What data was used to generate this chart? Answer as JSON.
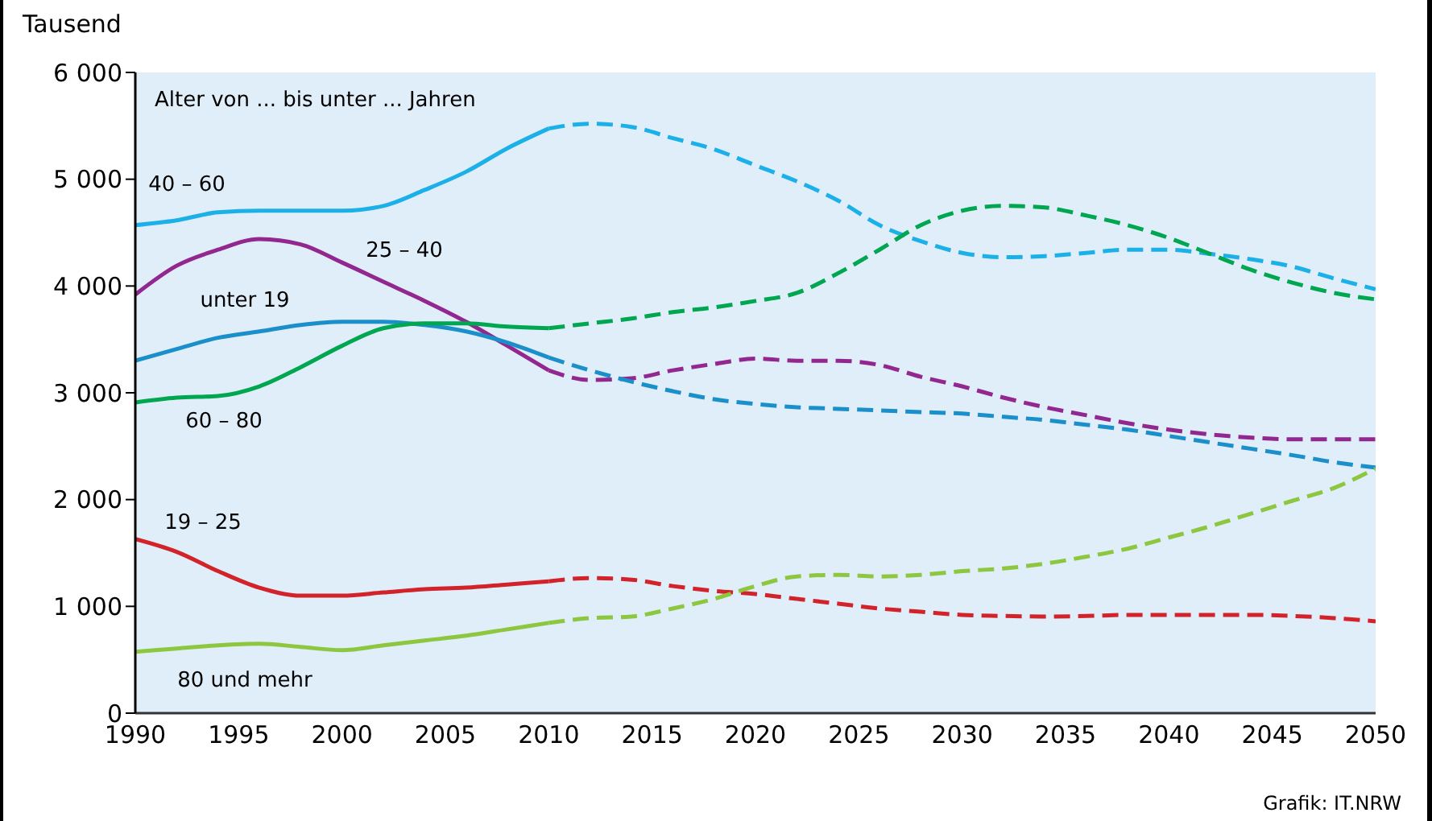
{
  "chart_data": {
    "type": "line",
    "ylabel": "Tausend",
    "x": [
      1990,
      1992,
      1994,
      1996,
      1998,
      2000,
      2002,
      2004,
      2006,
      2008,
      2010,
      2012,
      2014,
      2016,
      2018,
      2020,
      2022,
      2024,
      2026,
      2028,
      2030,
      2032,
      2034,
      2036,
      2038,
      2040,
      2042,
      2044,
      2046,
      2048,
      2050
    ],
    "series": [
      {
        "name": "40 – 60",
        "color": "#1cb0e8",
        "line_style": "solid",
        "values": [
          4570,
          4615,
          4690,
          4705,
          4705,
          4705,
          4750,
          4900,
          5070,
          5290,
          5475,
          null,
          null,
          null,
          null,
          null,
          null,
          null,
          null,
          null,
          null,
          null,
          null,
          null,
          null,
          null,
          null,
          null,
          null,
          null,
          null
        ]
      },
      {
        "color": "#1cb0e8",
        "line_style": "dashed",
        "values": [
          null,
          null,
          null,
          null,
          null,
          null,
          null,
          null,
          null,
          null,
          5475,
          5520,
          5490,
          5385,
          5280,
          5130,
          4980,
          4800,
          4570,
          4420,
          4310,
          4270,
          4280,
          4310,
          4340,
          4340,
          4300,
          4250,
          4180,
          4070,
          3970
        ]
      },
      {
        "name": "25 – 40",
        "color": "#92278f",
        "line_style": "solid",
        "values": [
          3920,
          4190,
          4340,
          4440,
          4390,
          4220,
          4040,
          3860,
          3665,
          3440,
          3210,
          null,
          null,
          null,
          null,
          null,
          null,
          null,
          null,
          null,
          null,
          null,
          null,
          null,
          null,
          null,
          null,
          null,
          null,
          null,
          null
        ]
      },
      {
        "color": "#92278f",
        "line_style": "dashed",
        "values": [
          null,
          null,
          null,
          null,
          null,
          null,
          null,
          null,
          null,
          null,
          3210,
          3120,
          3135,
          3210,
          3270,
          3320,
          3300,
          3300,
          3260,
          3150,
          3060,
          2955,
          2865,
          2790,
          2715,
          2655,
          2610,
          2580,
          2565,
          2565,
          2565
        ]
      },
      {
        "name": "unter 19",
        "color": "#1a8fc9",
        "line_style": "solid",
        "values": [
          3300,
          3410,
          3515,
          3575,
          3635,
          3665,
          3665,
          3635,
          3575,
          3470,
          3330,
          null,
          null,
          null,
          null,
          null,
          null,
          null,
          null,
          null,
          null,
          null,
          null,
          null,
          null,
          null,
          null,
          null,
          null,
          null,
          null
        ]
      },
      {
        "color": "#1a8fc9",
        "line_style": "dashed",
        "values": [
          null,
          null,
          null,
          null,
          null,
          null,
          null,
          null,
          null,
          null,
          3330,
          3210,
          3105,
          3015,
          2940,
          2895,
          2865,
          2850,
          2835,
          2820,
          2805,
          2775,
          2745,
          2700,
          2655,
          2595,
          2535,
          2475,
          2415,
          2350,
          2300
        ]
      },
      {
        "name": "60 – 80",
        "color": "#00a650",
        "line_style": "solid",
        "values": [
          2910,
          2955,
          2970,
          3060,
          3240,
          3440,
          3605,
          3650,
          3650,
          3620,
          3605,
          null,
          null,
          null,
          null,
          null,
          null,
          null,
          null,
          null,
          null,
          null,
          null,
          null,
          null,
          null,
          null,
          null,
          null,
          null,
          null
        ]
      },
      {
        "color": "#00a650",
        "line_style": "dashed",
        "values": [
          null,
          null,
          null,
          null,
          null,
          null,
          null,
          null,
          null,
          null,
          3605,
          3650,
          3695,
          3755,
          3800,
          3860,
          3935,
          4120,
          4340,
          4570,
          4705,
          4750,
          4735,
          4660,
          4570,
          4450,
          4300,
          4150,
          4030,
          3935,
          3875
        ]
      },
      {
        "name": "19 – 25",
        "color": "#d2232a",
        "line_style": "solid",
        "values": [
          1630,
          1510,
          1330,
          1175,
          1100,
          1100,
          1130,
          1160,
          1175,
          1205,
          1235,
          null,
          null,
          null,
          null,
          null,
          null,
          null,
          null,
          null,
          null,
          null,
          null,
          null,
          null,
          null,
          null,
          null,
          null,
          null,
          null
        ]
      },
      {
        "color": "#d2232a",
        "line_style": "dashed",
        "values": [
          null,
          null,
          null,
          null,
          null,
          null,
          null,
          null,
          null,
          null,
          1235,
          1265,
          1250,
          1190,
          1145,
          1115,
          1070,
          1025,
          980,
          950,
          920,
          910,
          905,
          910,
          920,
          920,
          920,
          920,
          910,
          890,
          860
        ]
      },
      {
        "name": "80 und mehr",
        "color": "#8dc63f",
        "line_style": "solid",
        "values": [
          575,
          605,
          635,
          650,
          620,
          590,
          635,
          680,
          725,
          785,
          845,
          null,
          null,
          null,
          null,
          null,
          null,
          null,
          null,
          null,
          null,
          null,
          null,
          null,
          null,
          null,
          null,
          null,
          null,
          null,
          null
        ]
      },
      {
        "color": "#8dc63f",
        "line_style": "dashed",
        "values": [
          null,
          null,
          null,
          null,
          null,
          null,
          null,
          null,
          null,
          null,
          845,
          890,
          905,
          980,
          1070,
          1190,
          1280,
          1295,
          1280,
          1295,
          1330,
          1355,
          1400,
          1465,
          1540,
          1645,
          1750,
          1870,
          1990,
          2110,
          2290
        ]
      }
    ],
    "xlim": [
      1990,
      2050
    ],
    "xticks": [
      1990,
      1995,
      2000,
      2005,
      2010,
      2015,
      2020,
      2025,
      2030,
      2035,
      2040,
      2045,
      2050
    ],
    "ylim": [
      0,
      6000
    ],
    "yticks": [
      0,
      {
        "value": 1000,
        "label": "1 000"
      },
      {
        "value": 2000,
        "label": "2 000"
      },
      {
        "value": 3000,
        "label": "3 000"
      },
      {
        "value": 4000,
        "label": "4 000"
      },
      {
        "value": 5000,
        "label": "5 000"
      },
      {
        "value": 6000,
        "label": "6 000"
      }
    ],
    "grid": false,
    "marker": "none",
    "annotations": [
      "Alter von ... bis unter ... Jahren",
      "Grafik: IT.NRW"
    ]
  }
}
